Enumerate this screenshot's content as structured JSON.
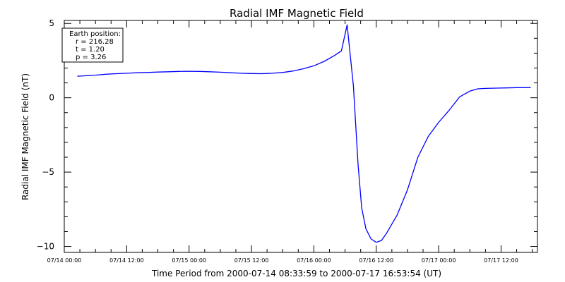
{
  "chart_data": {
    "type": "line",
    "title": "Radial IMF Magnetic Field",
    "xlabel": "Time Period from 2000-07-14 08:33:59 to 2000-07-17 16:53:54 (UT)",
    "ylabel": "Radial IMF Magnetic Field (nT)",
    "x_tick_labels": [
      "07/14 00:00",
      "07/14 12:00",
      "07/15 00:00",
      "07/15 12:00",
      "07/16 00:00",
      "07/16 12:00",
      "07/17 00:00",
      "07/17 12:00"
    ],
    "x_tick_hours": [
      0,
      12,
      24,
      36,
      48,
      60,
      72,
      84
    ],
    "xlim_hours": [
      0,
      91
    ],
    "y_ticks": [
      5,
      0,
      -5,
      -10
    ],
    "y_tick_labels": [
      "5",
      "0",
      "−5",
      "−10"
    ],
    "ylim": [
      -10.4,
      5.2
    ],
    "grid": false,
    "color": "#0000ff",
    "annotation": {
      "lines": [
        "Earth position:",
        "r = 216.28",
        "t = 1.20",
        "p = 3.26"
      ],
      "placement": "top-left"
    },
    "series": [
      {
        "x_hours": [
          2.5,
          4,
          6,
          8,
          10,
          12,
          14,
          16,
          18,
          20,
          22,
          24,
          26,
          28,
          30,
          32,
          34,
          36,
          38,
          40,
          42,
          44,
          46,
          48,
          50,
          52,
          53.3,
          54.4,
          55.6,
          56.5,
          57.2,
          58,
          59,
          60,
          61,
          62,
          63,
          64,
          66,
          68,
          70,
          72,
          74,
          76,
          78,
          79.5,
          81,
          83,
          85,
          87,
          89.7
        ],
        "values": [
          1.45,
          1.48,
          1.52,
          1.58,
          1.62,
          1.65,
          1.68,
          1.7,
          1.73,
          1.75,
          1.77,
          1.78,
          1.77,
          1.75,
          1.72,
          1.68,
          1.65,
          1.63,
          1.62,
          1.65,
          1.7,
          1.8,
          1.95,
          2.15,
          2.45,
          2.85,
          3.15,
          4.9,
          0.8,
          -4.5,
          -7.4,
          -8.8,
          -9.5,
          -9.72,
          -9.6,
          -9.1,
          -8.5,
          -7.9,
          -6.2,
          -4.0,
          -2.6,
          -1.65,
          -0.85,
          0.05,
          0.45,
          0.6,
          0.63,
          0.65,
          0.66,
          0.68,
          0.68
        ]
      }
    ]
  }
}
